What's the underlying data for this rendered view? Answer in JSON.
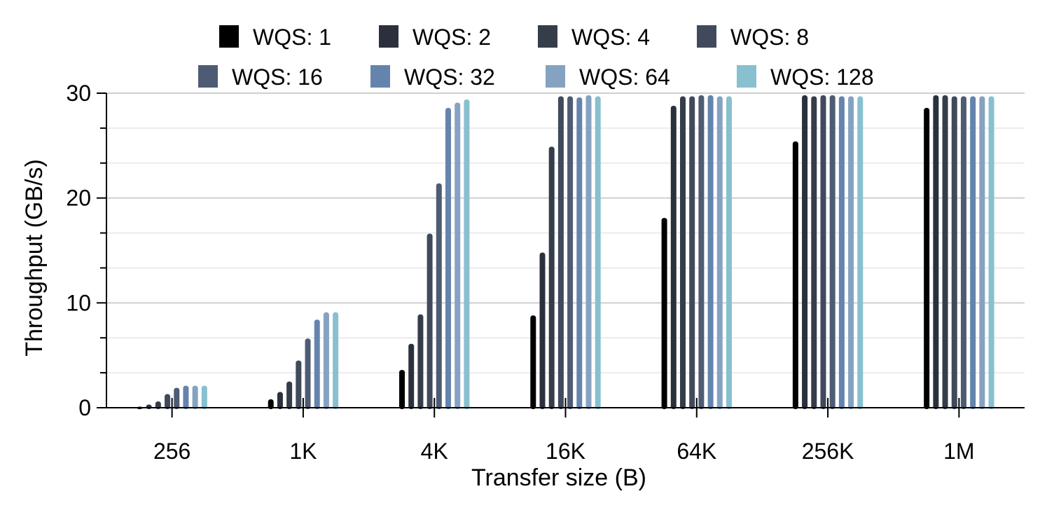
{
  "chart_data": {
    "type": "bar",
    "xlabel": "Transfer size (B)",
    "ylabel": "Throughput (GB/s)",
    "ylim": [
      0,
      30
    ],
    "yticks": [
      0,
      10,
      20,
      30
    ],
    "grid": "horizontal",
    "legend_position": "top",
    "categories": [
      "256",
      "1K",
      "4K",
      "16K",
      "64K",
      "256K",
      "1M"
    ],
    "series": [
      {
        "name": "WQS: 1",
        "color": "#000000",
        "values": [
          0.1,
          0.8,
          3.6,
          8.8,
          18.1,
          25.4,
          28.6
        ]
      },
      {
        "name": "WQS: 2",
        "color": "#2b313c",
        "values": [
          0.3,
          1.5,
          6.1,
          14.8,
          28.8,
          29.8,
          29.8
        ]
      },
      {
        "name": "WQS: 4",
        "color": "#363d4a",
        "values": [
          0.6,
          2.5,
          8.9,
          24.9,
          29.7,
          29.7,
          29.8
        ]
      },
      {
        "name": "WQS: 8",
        "color": "#414a5c",
        "values": [
          1.3,
          4.5,
          16.6,
          29.7,
          29.7,
          29.8,
          29.7
        ]
      },
      {
        "name": "WQS: 16",
        "color": "#4e5c73",
        "values": [
          1.9,
          6.6,
          21.4,
          29.7,
          29.8,
          29.8,
          29.7
        ]
      },
      {
        "name": "WQS: 32",
        "color": "#6584ad",
        "values": [
          2.1,
          8.4,
          28.6,
          29.6,
          29.8,
          29.7,
          29.7
        ]
      },
      {
        "name": "WQS: 64",
        "color": "#85a3c1",
        "values": [
          2.1,
          9.1,
          29.1,
          29.8,
          29.7,
          29.7,
          29.7
        ]
      },
      {
        "name": "WQS: 128",
        "color": "#88c0cf",
        "values": [
          2.1,
          9.1,
          29.4,
          29.7,
          29.7,
          29.7,
          29.7
        ]
      }
    ]
  }
}
